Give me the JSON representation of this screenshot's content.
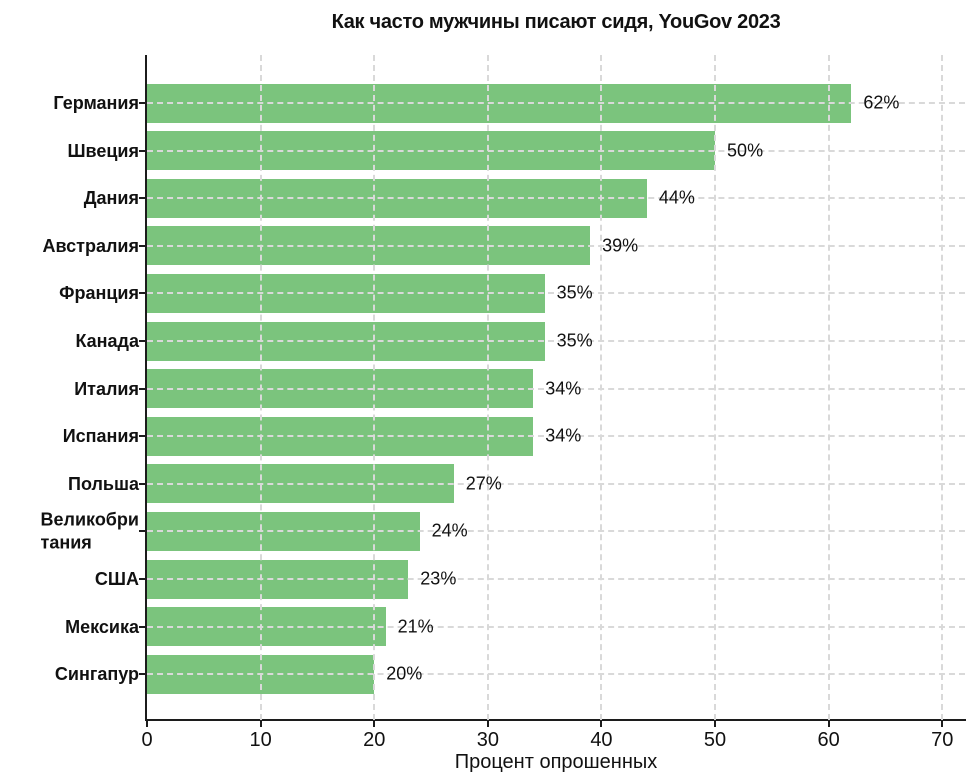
{
  "page": {
    "background": "#ffffff"
  },
  "chart_data": {
    "type": "bar",
    "orientation": "horizontal",
    "title": "Как часто мужчины писают сидя, YouGov 2023",
    "xlabel": "Процент опрошенных",
    "ylabel": "",
    "categories": [
      "Германия",
      "Швеция",
      "Дания",
      "Австралия",
      "Франция",
      "Канада",
      "Италия",
      "Испания",
      "Польша",
      "Великобри\nтания",
      "США",
      "Мексика",
      "Сингапур"
    ],
    "values": [
      62,
      50,
      44,
      39,
      35,
      35,
      34,
      34,
      27,
      24,
      23,
      21,
      20
    ],
    "value_labels": [
      "62%",
      "50%",
      "44%",
      "39%",
      "35%",
      "35%",
      "34%",
      "34%",
      "27%",
      "24%",
      "23%",
      "21%",
      "20%"
    ],
    "xticks": [
      0,
      10,
      20,
      30,
      40,
      50,
      60,
      70
    ],
    "xlim": [
      0,
      72
    ],
    "grid": "dashed, horizontal and vertical, drawn over bars",
    "legend": "none",
    "colors": {
      "bar": "#7bc47d",
      "grid": "#d9d9d9",
      "axis": "#1c1c1c",
      "text": "#111111",
      "background": "#ffffff"
    }
  }
}
